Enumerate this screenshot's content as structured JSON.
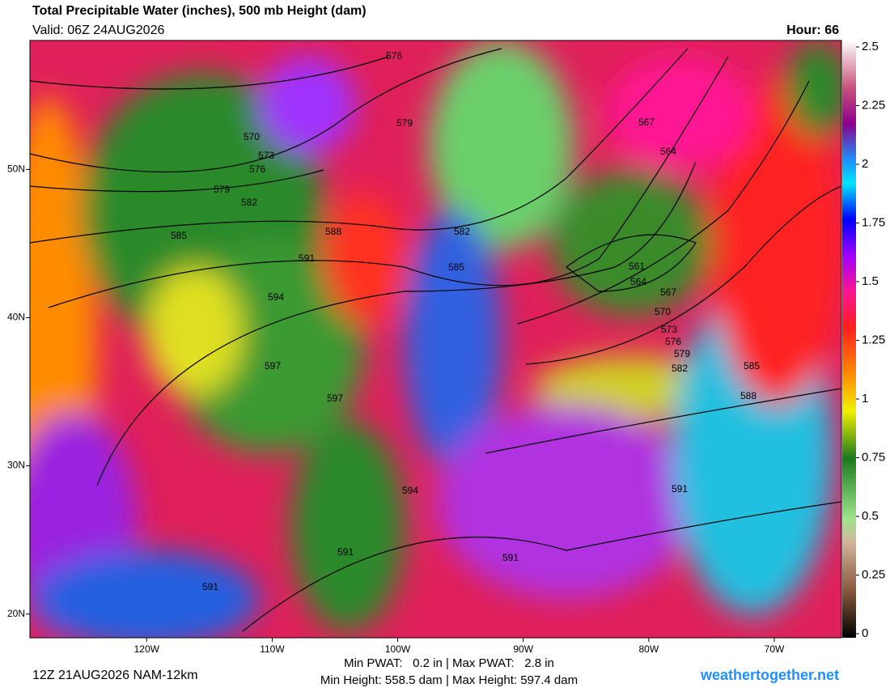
{
  "header": {
    "title": "Total Precipitable Water (inches), 500 mb Height (dam)",
    "valid": "Valid: 06Z 24AUG2026",
    "hour": "Hour: 66"
  },
  "map": {
    "lon_range": [
      -129.3,
      -64.65
    ],
    "lat_range": [
      18.4,
      58.7
    ],
    "lon_ticks": [
      {
        "value": -120,
        "label": "120W"
      },
      {
        "value": -110,
        "label": "110W"
      },
      {
        "value": -100,
        "label": "100W"
      },
      {
        "value": -90,
        "label": "90W"
      },
      {
        "value": -80,
        "label": "80W"
      },
      {
        "value": -70,
        "label": "70W"
      }
    ],
    "lat_ticks": [
      {
        "value": 20,
        "label": "20N"
      },
      {
        "value": 30,
        "label": "30N"
      },
      {
        "value": 40,
        "label": "40N"
      },
      {
        "value": 50,
        "label": "50N"
      }
    ],
    "contour_labels": [
      "576",
      "579",
      "570",
      "573",
      "576",
      "579",
      "582",
      "585",
      "588",
      "591",
      "594",
      "597",
      "597",
      "594",
      "591",
      "591",
      "591",
      "582",
      "585",
      "567",
      "564",
      "561",
      "564",
      "567",
      "570",
      "573",
      "576",
      "579",
      "582",
      "585",
      "588",
      "591"
    ]
  },
  "colorbar": {
    "range": [
      0,
      2.5
    ],
    "ticks": [
      0,
      0.25,
      0.5,
      0.75,
      1,
      1.25,
      1.5,
      1.75,
      2,
      2.25,
      2.5
    ]
  },
  "footer": {
    "run": "12Z 21AUG2026 NAM-12km",
    "pwat": "Min PWAT:   0.2 in | Max PWAT:   2.8 in",
    "height": "Min Height: 558.5 dam | Max Height: 597.4 dam",
    "site": "weathertogether.net"
  }
}
